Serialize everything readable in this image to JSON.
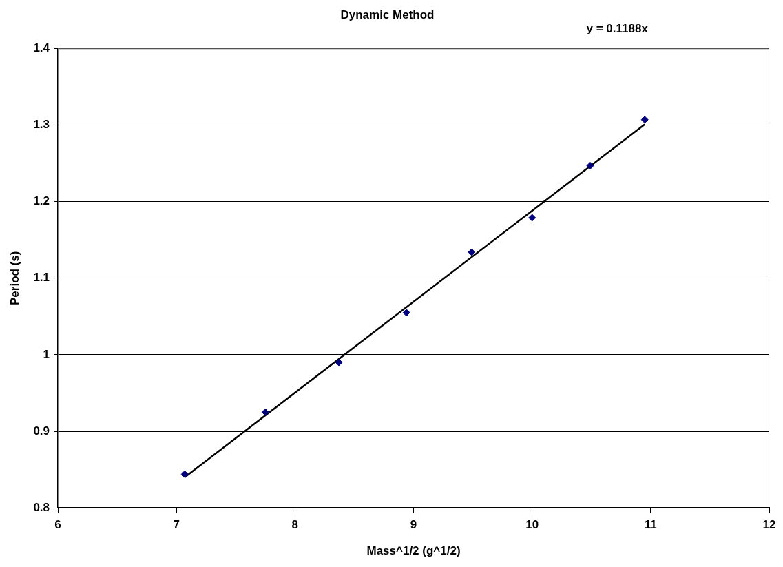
{
  "chart_data": {
    "type": "scatter",
    "title": "Dynamic Method",
    "xlabel": "Mass^1/2 (g^1/2)",
    "ylabel": "Period (s)",
    "annotations": [
      "y = 0.1188x"
    ],
    "xlim": [
      6,
      12
    ],
    "xticks": [
      6,
      7,
      8,
      9,
      10,
      11,
      12
    ],
    "ylim": [
      0.8,
      1.4
    ],
    "yticks": [
      0.8,
      0.9,
      1,
      1.1,
      1.2,
      1.3,
      1.4
    ],
    "grid": "y",
    "legend": false,
    "marker": "diamond",
    "series": [
      {
        "color": "#000080",
        "x": [
          7.07,
          7.75,
          8.37,
          8.94,
          9.49,
          10.0,
          10.49,
          10.95
        ],
        "values": [
          0.844,
          0.925,
          0.99,
          1.055,
          1.134,
          1.179,
          1.247,
          1.307
        ]
      },
      {
        "type": "line",
        "color": "#000000",
        "marker": "none",
        "x": [
          7.07,
          10.95
        ],
        "values": [
          0.84,
          1.301
        ]
      }
    ]
  }
}
